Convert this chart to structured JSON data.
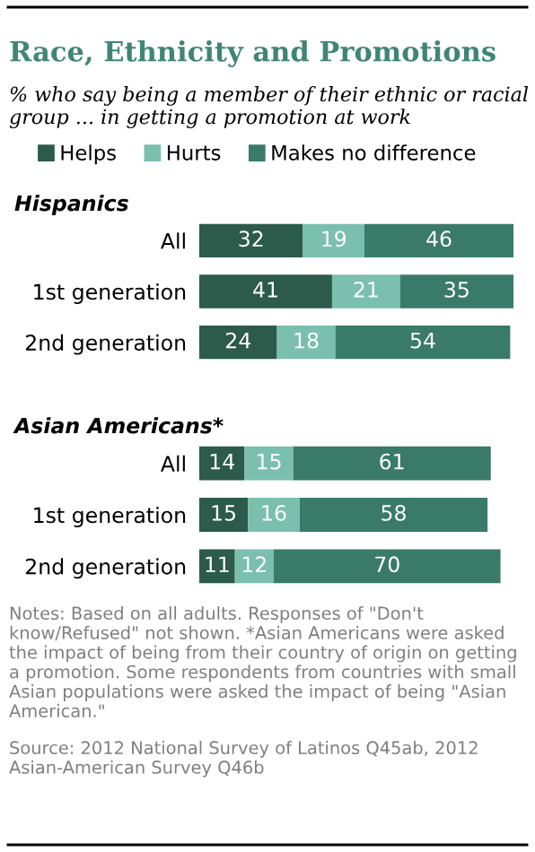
{
  "chart_data": [
    {
      "type": "bar",
      "orientation": "horizontal",
      "stacked": true,
      "data_labels": true,
      "legend": "top",
      "grid": false,
      "title": "Race, Ethnicity and Promotions",
      "subtitle": "% who say being a member of their ethnic or racial group ... in getting a promotion at work",
      "ylabel": "Hispanics",
      "categories": [
        "All",
        "1st generation",
        "2nd generation"
      ],
      "series": [
        {
          "name": "Helps",
          "color": "#2c5a4b",
          "values": [
            32,
            41,
            24
          ]
        },
        {
          "name": "Hurts",
          "color": "#7bbfae",
          "values": [
            19,
            21,
            18
          ]
        },
        {
          "name": "Makes no difference",
          "color": "#3a7a69",
          "values": [
            46,
            35,
            54
          ]
        }
      ]
    },
    {
      "type": "bar",
      "orientation": "horizontal",
      "stacked": true,
      "data_labels": true,
      "grid": false,
      "ylabel": "Asian Americans*",
      "categories": [
        "All",
        "1st generation",
        "2nd generation"
      ],
      "series": [
        {
          "color": "#2c5a4b",
          "values": [
            14,
            15,
            11
          ]
        },
        {
          "color": "#7bbfae",
          "values": [
            15,
            16,
            12
          ]
        },
        {
          "color": "#3a7a69",
          "values": [
            61,
            58,
            70
          ]
        }
      ],
      "annotations": [
        "Notes: Based on all adults. Responses of \"Don't know/Refused\" not shown. *Asian Americans were asked the impact of being from their country of origin on getting a promotion. Some respondents from countries with small Asian populations were asked the impact of being \"Asian American.\"",
        "Source: 2012 National Survey of Latinos Q45ab, 2012 Asian-American Survey Q46b"
      ]
    }
  ]
}
